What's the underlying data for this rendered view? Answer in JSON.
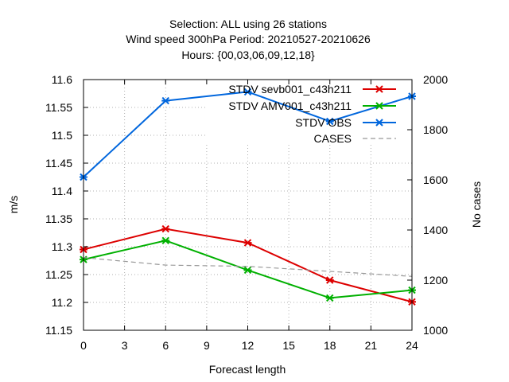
{
  "chart_data": {
    "type": "line",
    "title_lines": [
      "Selection: ALL using    26 stations",
      "Wind speed 300hPa   Period: 20210527-20210626",
      "Hours: {00,03,06,09,12,18}"
    ],
    "xlabel": "Forecast length",
    "ylabel": "m/s",
    "y2label": "No cases",
    "xlim": [
      0,
      24
    ],
    "ylim": [
      11.15,
      11.6
    ],
    "y2lim": [
      1000,
      2000
    ],
    "xticks": [
      0,
      3,
      6,
      9,
      12,
      15,
      18,
      21,
      24
    ],
    "yticks": [
      11.15,
      11.2,
      11.25,
      11.3,
      11.35,
      11.4,
      11.45,
      11.5,
      11.55,
      11.6
    ],
    "y2ticks": [
      1000,
      1200,
      1400,
      1600,
      1800,
      2000
    ],
    "grid": true,
    "legend_position": "top-right",
    "x": [
      0,
      6,
      12,
      18,
      24
    ],
    "series": [
      {
        "name": "STDV sevb001_c43h211",
        "color": "#dd0000",
        "axis": "y1",
        "style": "line-points",
        "values": [
          11.295,
          11.332,
          11.307,
          11.24,
          11.201
        ]
      },
      {
        "name": "STDV AMV001_c43h211",
        "color": "#00b000",
        "axis": "y1",
        "style": "line-points",
        "values": [
          11.277,
          11.311,
          11.258,
          11.208,
          11.222
        ]
      },
      {
        "name": "STDV OBS",
        "color": "#0066dd",
        "axis": "y1",
        "style": "line-points",
        "values": [
          11.425,
          11.562,
          11.578,
          11.525,
          11.57
        ]
      },
      {
        "name": "CASES",
        "color": "#999999",
        "axis": "y2",
        "style": "dashed",
        "values": [
          1290,
          1260,
          1255,
          1235,
          1215
        ]
      }
    ]
  }
}
